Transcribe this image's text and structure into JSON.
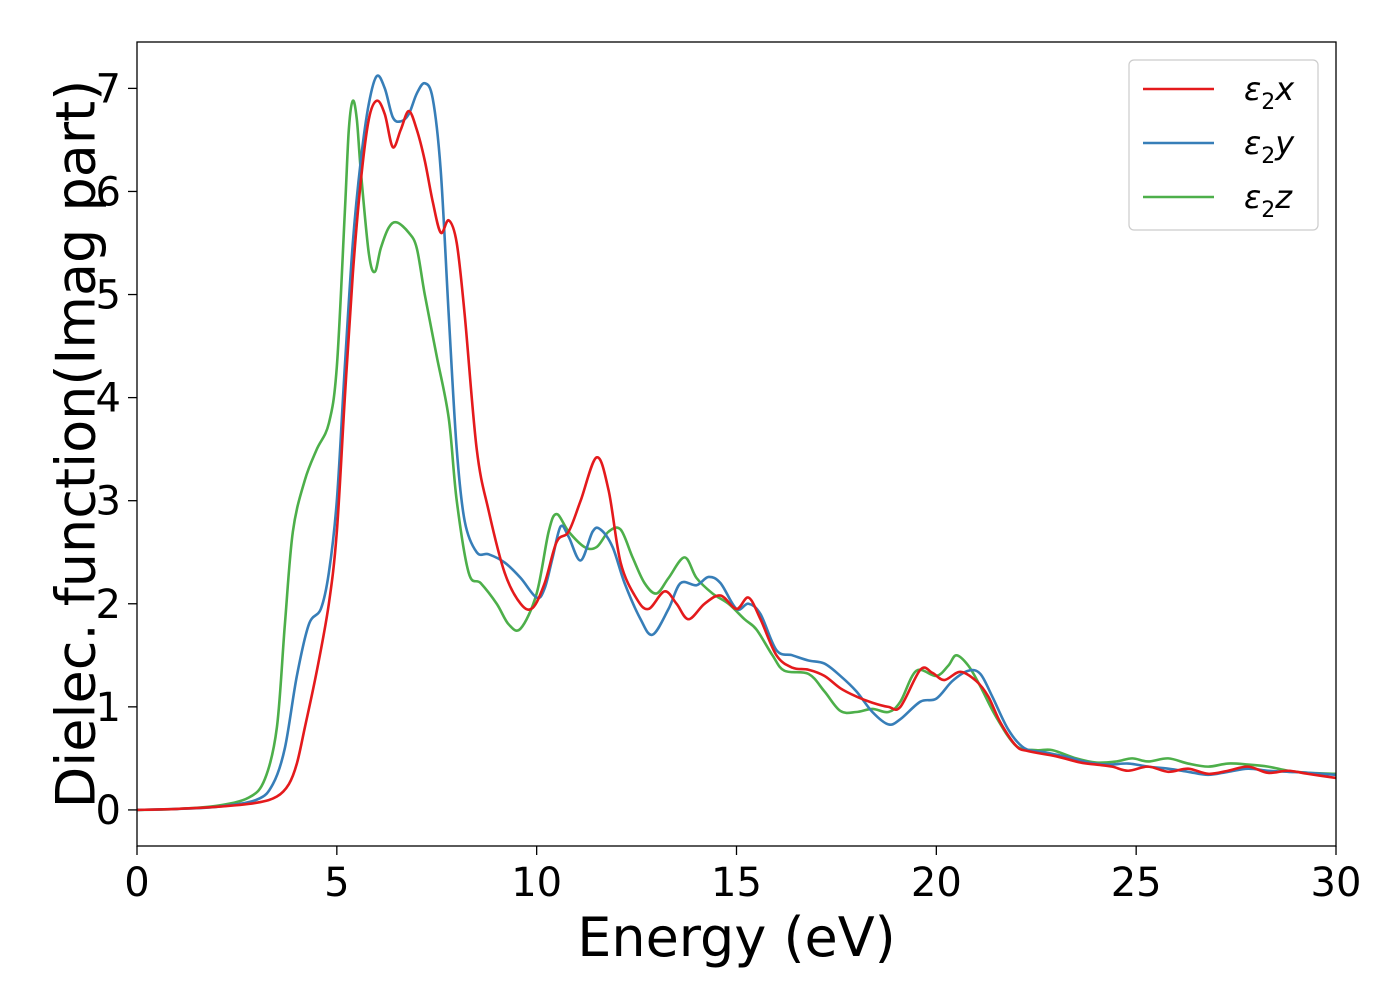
{
  "chart_data": {
    "type": "line",
    "title": "",
    "xlabel": "Energy (eV)",
    "ylabel": "Dielec. function(Imag part)",
    "xlim": [
      0,
      30
    ],
    "ylim": [
      -0.35,
      7.45
    ],
    "xticks": [
      0,
      5,
      10,
      15,
      20,
      25,
      30
    ],
    "yticks": [
      0,
      1,
      2,
      3,
      4,
      5,
      6,
      7
    ],
    "grid": false,
    "legend_position": "top-right",
    "series": [
      {
        "name": "ε₂x",
        "legend_base": "ε",
        "legend_sub": "2",
        "legend_suffix": "x",
        "color": "#e41a1c",
        "points": [
          [
            0,
            0
          ],
          [
            1,
            0.01
          ],
          [
            2,
            0.03
          ],
          [
            3,
            0.07
          ],
          [
            3.5,
            0.13
          ],
          [
            3.8,
            0.25
          ],
          [
            4.0,
            0.45
          ],
          [
            4.2,
            0.8
          ],
          [
            4.5,
            1.35
          ],
          [
            4.8,
            2.0
          ],
          [
            5.0,
            2.7
          ],
          [
            5.2,
            4.0
          ],
          [
            5.4,
            5.2
          ],
          [
            5.6,
            6.1
          ],
          [
            5.8,
            6.7
          ],
          [
            6.0,
            6.88
          ],
          [
            6.2,
            6.75
          ],
          [
            6.4,
            6.43
          ],
          [
            6.6,
            6.6
          ],
          [
            6.8,
            6.78
          ],
          [
            7.0,
            6.6
          ],
          [
            7.2,
            6.3
          ],
          [
            7.4,
            5.9
          ],
          [
            7.6,
            5.6
          ],
          [
            7.8,
            5.72
          ],
          [
            8.0,
            5.5
          ],
          [
            8.2,
            4.8
          ],
          [
            8.5,
            3.5
          ],
          [
            8.8,
            2.9
          ],
          [
            9.2,
            2.3
          ],
          [
            9.6,
            2.0
          ],
          [
            9.9,
            1.96
          ],
          [
            10.2,
            2.2
          ],
          [
            10.5,
            2.6
          ],
          [
            10.8,
            2.7
          ],
          [
            11.1,
            3.0
          ],
          [
            11.5,
            3.42
          ],
          [
            11.8,
            3.1
          ],
          [
            12.1,
            2.4
          ],
          [
            12.5,
            2.05
          ],
          [
            12.8,
            1.95
          ],
          [
            13.2,
            2.12
          ],
          [
            13.5,
            2.0
          ],
          [
            13.8,
            1.85
          ],
          [
            14.2,
            2.0
          ],
          [
            14.6,
            2.08
          ],
          [
            15.0,
            1.95
          ],
          [
            15.3,
            2.06
          ],
          [
            15.6,
            1.85
          ],
          [
            16.0,
            1.5
          ],
          [
            16.4,
            1.38
          ],
          [
            16.8,
            1.36
          ],
          [
            17.2,
            1.3
          ],
          [
            17.6,
            1.18
          ],
          [
            18.0,
            1.1
          ],
          [
            18.4,
            1.04
          ],
          [
            18.8,
            1.0
          ],
          [
            19.1,
            1.0
          ],
          [
            19.6,
            1.36
          ],
          [
            19.9,
            1.33
          ],
          [
            20.2,
            1.26
          ],
          [
            20.6,
            1.34
          ],
          [
            21.0,
            1.25
          ],
          [
            21.3,
            1.1
          ],
          [
            21.6,
            0.85
          ],
          [
            22.0,
            0.62
          ],
          [
            22.3,
            0.57
          ],
          [
            23.0,
            0.52
          ],
          [
            23.6,
            0.46
          ],
          [
            24.0,
            0.44
          ],
          [
            24.4,
            0.42
          ],
          [
            24.8,
            0.38
          ],
          [
            25.3,
            0.42
          ],
          [
            25.8,
            0.37
          ],
          [
            26.3,
            0.4
          ],
          [
            26.8,
            0.35
          ],
          [
            27.3,
            0.38
          ],
          [
            27.8,
            0.42
          ],
          [
            28.3,
            0.36
          ],
          [
            28.8,
            0.38
          ],
          [
            29.3,
            0.35
          ],
          [
            30,
            0.31
          ]
        ]
      },
      {
        "name": "ε₂y",
        "legend_base": "ε",
        "legend_sub": "2",
        "legend_suffix": "y",
        "color": "#377eb8",
        "points": [
          [
            0,
            0
          ],
          [
            1,
            0.01
          ],
          [
            2,
            0.03
          ],
          [
            3,
            0.1
          ],
          [
            3.4,
            0.25
          ],
          [
            3.7,
            0.6
          ],
          [
            4.0,
            1.3
          ],
          [
            4.3,
            1.8
          ],
          [
            4.6,
            1.95
          ],
          [
            4.8,
            2.3
          ],
          [
            5.0,
            3.0
          ],
          [
            5.2,
            4.3
          ],
          [
            5.4,
            5.5
          ],
          [
            5.6,
            6.3
          ],
          [
            5.8,
            6.85
          ],
          [
            6.0,
            7.12
          ],
          [
            6.2,
            7.0
          ],
          [
            6.4,
            6.72
          ],
          [
            6.6,
            6.68
          ],
          [
            6.8,
            6.75
          ],
          [
            7.0,
            6.95
          ],
          [
            7.2,
            7.05
          ],
          [
            7.4,
            6.9
          ],
          [
            7.6,
            6.2
          ],
          [
            7.8,
            4.8
          ],
          [
            8.0,
            3.5
          ],
          [
            8.2,
            2.8
          ],
          [
            8.5,
            2.5
          ],
          [
            8.8,
            2.48
          ],
          [
            9.2,
            2.4
          ],
          [
            9.6,
            2.25
          ],
          [
            10.0,
            2.06
          ],
          [
            10.2,
            2.15
          ],
          [
            10.4,
            2.45
          ],
          [
            10.6,
            2.75
          ],
          [
            10.8,
            2.65
          ],
          [
            11.1,
            2.42
          ],
          [
            11.4,
            2.7
          ],
          [
            11.6,
            2.72
          ],
          [
            11.9,
            2.55
          ],
          [
            12.2,
            2.2
          ],
          [
            12.6,
            1.85
          ],
          [
            12.9,
            1.7
          ],
          [
            13.3,
            1.95
          ],
          [
            13.6,
            2.2
          ],
          [
            14.0,
            2.18
          ],
          [
            14.3,
            2.26
          ],
          [
            14.6,
            2.2
          ],
          [
            15.0,
            1.95
          ],
          [
            15.3,
            2.0
          ],
          [
            15.6,
            1.9
          ],
          [
            16.0,
            1.55
          ],
          [
            16.4,
            1.5
          ],
          [
            16.8,
            1.45
          ],
          [
            17.2,
            1.42
          ],
          [
            17.6,
            1.3
          ],
          [
            18.0,
            1.15
          ],
          [
            18.4,
            0.95
          ],
          [
            18.8,
            0.83
          ],
          [
            19.1,
            0.88
          ],
          [
            19.6,
            1.05
          ],
          [
            20.0,
            1.08
          ],
          [
            20.4,
            1.25
          ],
          [
            20.8,
            1.35
          ],
          [
            21.1,
            1.32
          ],
          [
            21.4,
            1.1
          ],
          [
            21.8,
            0.78
          ],
          [
            22.2,
            0.6
          ],
          [
            22.7,
            0.56
          ],
          [
            23.2,
            0.52
          ],
          [
            23.8,
            0.46
          ],
          [
            24.3,
            0.44
          ],
          [
            24.8,
            0.45
          ],
          [
            25.3,
            0.42
          ],
          [
            25.8,
            0.4
          ],
          [
            26.3,
            0.37
          ],
          [
            26.8,
            0.34
          ],
          [
            27.3,
            0.37
          ],
          [
            27.8,
            0.4
          ],
          [
            28.3,
            0.38
          ],
          [
            28.8,
            0.37
          ],
          [
            29.3,
            0.36
          ],
          [
            30,
            0.34
          ]
        ]
      },
      {
        "name": "ε₂z",
        "legend_base": "ε",
        "legend_sub": "2",
        "legend_suffix": "z",
        "color": "#4daf4a",
        "points": [
          [
            0,
            0
          ],
          [
            1,
            0.01
          ],
          [
            2,
            0.04
          ],
          [
            2.8,
            0.12
          ],
          [
            3.2,
            0.3
          ],
          [
            3.5,
            0.8
          ],
          [
            3.7,
            1.8
          ],
          [
            3.9,
            2.7
          ],
          [
            4.2,
            3.2
          ],
          [
            4.5,
            3.5
          ],
          [
            4.8,
            3.75
          ],
          [
            5.0,
            4.3
          ],
          [
            5.2,
            5.8
          ],
          [
            5.3,
            6.6
          ],
          [
            5.4,
            6.88
          ],
          [
            5.5,
            6.7
          ],
          [
            5.6,
            6.2
          ],
          [
            5.8,
            5.4
          ],
          [
            5.95,
            5.22
          ],
          [
            6.1,
            5.45
          ],
          [
            6.3,
            5.65
          ],
          [
            6.5,
            5.7
          ],
          [
            6.8,
            5.6
          ],
          [
            7.0,
            5.45
          ],
          [
            7.2,
            5.0
          ],
          [
            7.5,
            4.4
          ],
          [
            7.8,
            3.8
          ],
          [
            8.0,
            3.0
          ],
          [
            8.3,
            2.3
          ],
          [
            8.6,
            2.2
          ],
          [
            9.0,
            2.0
          ],
          [
            9.3,
            1.8
          ],
          [
            9.6,
            1.76
          ],
          [
            10.0,
            2.1
          ],
          [
            10.3,
            2.7
          ],
          [
            10.5,
            2.87
          ],
          [
            10.8,
            2.7
          ],
          [
            11.2,
            2.55
          ],
          [
            11.5,
            2.55
          ],
          [
            11.8,
            2.7
          ],
          [
            12.1,
            2.72
          ],
          [
            12.4,
            2.45
          ],
          [
            12.7,
            2.2
          ],
          [
            13.0,
            2.1
          ],
          [
            13.3,
            2.25
          ],
          [
            13.7,
            2.45
          ],
          [
            14.0,
            2.25
          ],
          [
            14.4,
            2.1
          ],
          [
            14.8,
            2.0
          ],
          [
            15.2,
            1.85
          ],
          [
            15.5,
            1.75
          ],
          [
            15.9,
            1.5
          ],
          [
            16.2,
            1.35
          ],
          [
            16.8,
            1.32
          ],
          [
            17.2,
            1.15
          ],
          [
            17.6,
            0.96
          ],
          [
            18.0,
            0.95
          ],
          [
            18.4,
            0.98
          ],
          [
            18.8,
            0.95
          ],
          [
            19.1,
            1.05
          ],
          [
            19.5,
            1.35
          ],
          [
            20.0,
            1.3
          ],
          [
            20.3,
            1.4
          ],
          [
            20.5,
            1.5
          ],
          [
            20.8,
            1.4
          ],
          [
            21.1,
            1.2
          ],
          [
            21.5,
            0.9
          ],
          [
            22.0,
            0.62
          ],
          [
            22.5,
            0.58
          ],
          [
            22.9,
            0.58
          ],
          [
            23.5,
            0.5
          ],
          [
            24.0,
            0.46
          ],
          [
            24.5,
            0.47
          ],
          [
            24.9,
            0.5
          ],
          [
            25.3,
            0.47
          ],
          [
            25.8,
            0.5
          ],
          [
            26.3,
            0.45
          ],
          [
            26.8,
            0.42
          ],
          [
            27.3,
            0.45
          ],
          [
            27.8,
            0.44
          ],
          [
            28.3,
            0.42
          ],
          [
            28.8,
            0.38
          ],
          [
            29.3,
            0.36
          ],
          [
            30,
            0.35
          ]
        ]
      }
    ]
  }
}
